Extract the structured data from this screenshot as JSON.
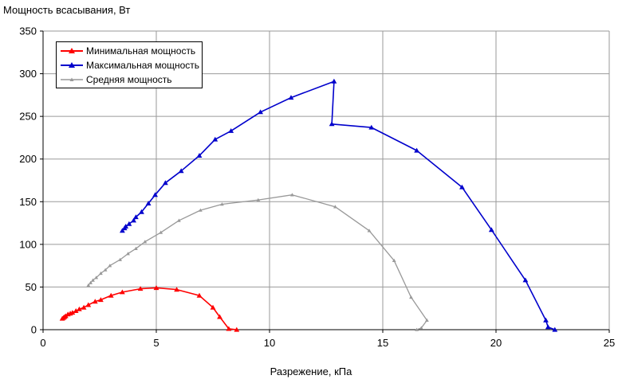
{
  "chart_data": {
    "type": "line",
    "title": "",
    "ylabel": "Мощность всасывания, Вт",
    "xlabel": "Разрежение, кПа",
    "xlim": [
      0,
      25
    ],
    "ylim": [
      0,
      350
    ],
    "xticks": [
      0,
      5,
      10,
      15,
      20,
      25
    ],
    "yticks": [
      0,
      50,
      100,
      150,
      200,
      250,
      300,
      350
    ],
    "xtick_labels": [
      "0",
      "5",
      "10",
      "15",
      "20",
      "25"
    ],
    "ytick_labels": [
      "0",
      "50",
      "100",
      "150",
      "200",
      "250",
      "300",
      "350"
    ],
    "grid": true,
    "legend_position": "top-left",
    "series": [
      {
        "name": "Минимальная мощность",
        "color": "#ff0000",
        "marker": "triangle",
        "points": [
          [
            0.85,
            13
          ],
          [
            0.9,
            14
          ],
          [
            0.95,
            15
          ],
          [
            1.0,
            16
          ],
          [
            1.1,
            18
          ],
          [
            1.2,
            19
          ],
          [
            1.3,
            20
          ],
          [
            1.45,
            22
          ],
          [
            1.6,
            24
          ],
          [
            1.8,
            26
          ],
          [
            2.0,
            29
          ],
          [
            2.3,
            33
          ],
          [
            2.55,
            35
          ],
          [
            3.0,
            40
          ],
          [
            3.5,
            44
          ],
          [
            4.3,
            48
          ],
          [
            5.0,
            49
          ],
          [
            5.9,
            47
          ],
          [
            6.9,
            40
          ],
          [
            7.5,
            26
          ],
          [
            7.8,
            15
          ],
          [
            8.2,
            1
          ],
          [
            8.55,
            0
          ]
        ]
      },
      {
        "name": "Максимальная мощность",
        "color": "#0000cc",
        "marker": "triangle",
        "points": [
          [
            3.5,
            116
          ],
          [
            3.6,
            119
          ],
          [
            3.65,
            121
          ],
          [
            3.8,
            124
          ],
          [
            4.0,
            128
          ],
          [
            4.1,
            132
          ],
          [
            4.35,
            138
          ],
          [
            4.65,
            148
          ],
          [
            4.95,
            158
          ],
          [
            5.4,
            172
          ],
          [
            6.1,
            186
          ],
          [
            6.9,
            204
          ],
          [
            7.6,
            223
          ],
          [
            8.3,
            233
          ],
          [
            9.6,
            255
          ],
          [
            10.95,
            272
          ],
          [
            12.85,
            291
          ],
          [
            12.75,
            241
          ],
          [
            14.5,
            237
          ],
          [
            16.5,
            210
          ],
          [
            18.5,
            167
          ],
          [
            19.8,
            117
          ],
          [
            21.3,
            58
          ],
          [
            22.2,
            11
          ],
          [
            22.3,
            3
          ],
          [
            22.6,
            0
          ]
        ]
      },
      {
        "name": "Средняя мощность",
        "color": "#999999",
        "marker": "small-triangle",
        "points": [
          [
            2.0,
            52
          ],
          [
            2.1,
            55
          ],
          [
            2.2,
            58
          ],
          [
            2.35,
            61
          ],
          [
            2.55,
            66
          ],
          [
            2.75,
            70
          ],
          [
            2.95,
            75
          ],
          [
            3.4,
            82
          ],
          [
            3.75,
            89
          ],
          [
            4.1,
            95
          ],
          [
            4.5,
            103
          ],
          [
            5.2,
            114
          ],
          [
            6.0,
            128
          ],
          [
            6.95,
            140
          ],
          [
            7.9,
            147
          ],
          [
            9.5,
            152
          ],
          [
            11.0,
            158
          ],
          [
            12.9,
            144
          ],
          [
            14.4,
            116
          ],
          [
            15.5,
            81
          ],
          [
            16.25,
            38
          ],
          [
            16.95,
            11
          ],
          [
            16.7,
            2
          ],
          [
            16.5,
            0
          ]
        ]
      }
    ]
  }
}
